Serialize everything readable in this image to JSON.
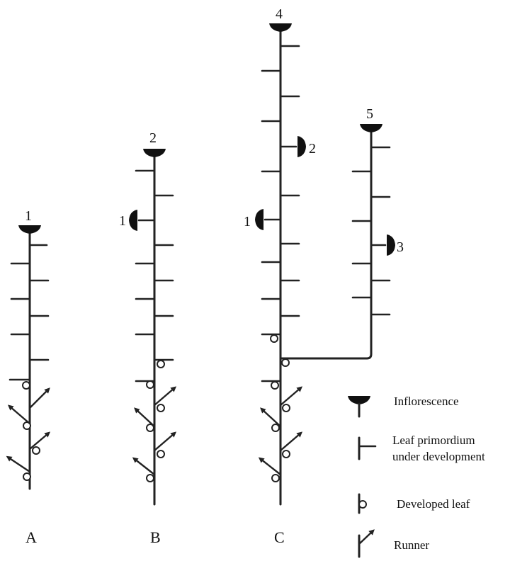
{
  "plants": [
    {
      "id": "A",
      "label": "A",
      "inflorescence_numbers": [
        "1"
      ]
    },
    {
      "id": "B",
      "label": "B",
      "inflorescence_numbers": [
        "2",
        "1"
      ]
    },
    {
      "id": "C",
      "label": "C",
      "inflorescence_numbers": [
        "4",
        "2",
        "1",
        "5",
        "3"
      ]
    }
  ],
  "legend": {
    "inflorescence": "Inflorescence",
    "leaf_primordium_line1": "Leaf primordium",
    "leaf_primordium_line2": "under development",
    "developed_leaf": "Developed leaf",
    "runner": "Runner"
  }
}
